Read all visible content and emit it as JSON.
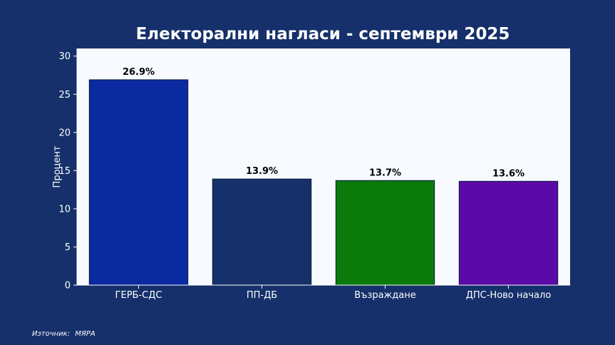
{
  "chart_data": {
    "type": "bar",
    "title": "Електорални нагласи - септември 2025",
    "xlabel": "",
    "ylabel": "Процент",
    "categories": [
      "ГЕРБ-СДС",
      "ПП-ДБ",
      "Възраждане",
      "ДПС-Ново начало"
    ],
    "values": [
      26.9,
      13.9,
      13.7,
      13.6
    ],
    "data_labels": [
      "26.9%",
      "13.9%",
      "13.7%",
      "13.6%"
    ],
    "colors": [
      "#0b2aa0",
      "#15306a",
      "#0a7a0a",
      "#5b0aa8"
    ],
    "ylim": [
      0,
      31
    ],
    "yticks": [
      0,
      5,
      10,
      15,
      20,
      25,
      30
    ],
    "grid": false,
    "legend": "none"
  },
  "source": {
    "label": "Източник:",
    "name": "МЯРА"
  },
  "theme": {
    "background": "#15306a",
    "plot_background": "#f7fbff",
    "text_color": "#ffffff",
    "label_color": "#000000"
  }
}
